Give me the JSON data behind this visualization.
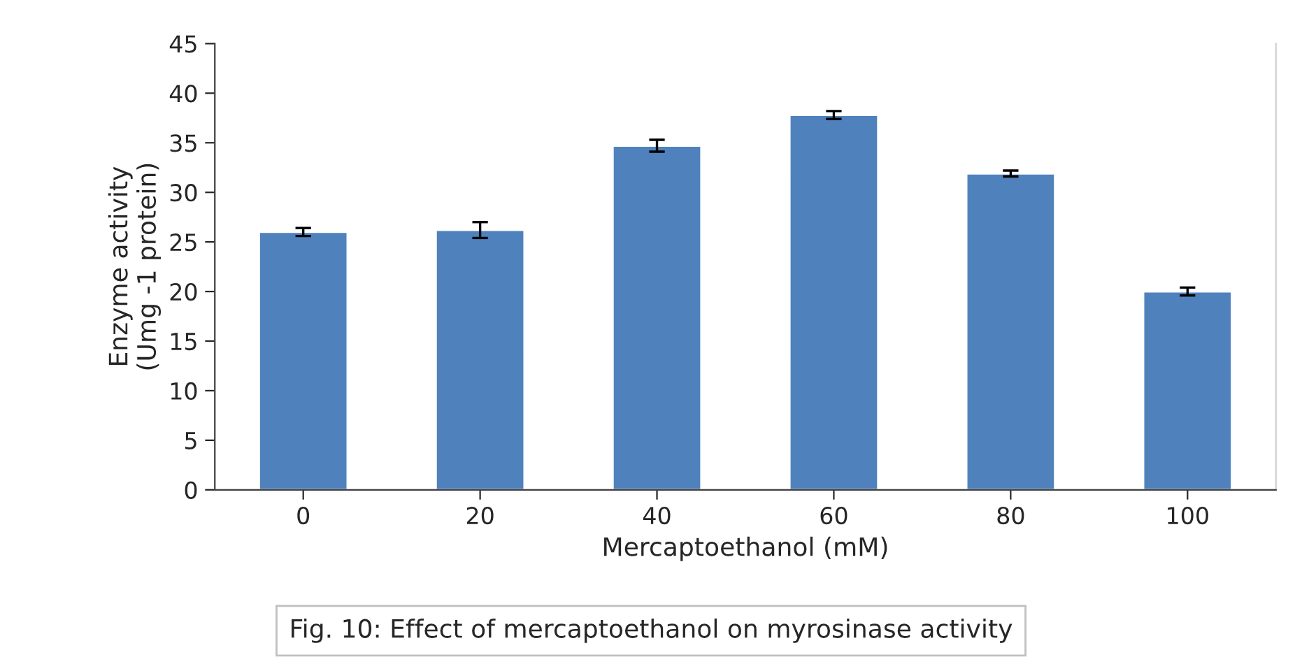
{
  "chart_data": {
    "type": "bar",
    "xlabel": "Mercaptoethanol (mM)",
    "ylabel": "Enzyme activity\n(Umg -1 protein)",
    "categories": [
      "0",
      "20",
      "40",
      "60",
      "80",
      "100"
    ],
    "values": [
      26,
      26.2,
      34.7,
      37.8,
      31.9,
      20
    ],
    "errors": [
      0.4,
      0.8,
      0.6,
      0.4,
      0.3,
      0.4
    ],
    "color": "#4f81bd",
    "ylim": [
      0,
      45
    ],
    "yticks": [
      0,
      5,
      10,
      15,
      20,
      25,
      30,
      35,
      40,
      45
    ],
    "grid": false,
    "annotations": [
      "Fig. 10: Effect of mercaptoethanol on myrosinase activity"
    ]
  }
}
